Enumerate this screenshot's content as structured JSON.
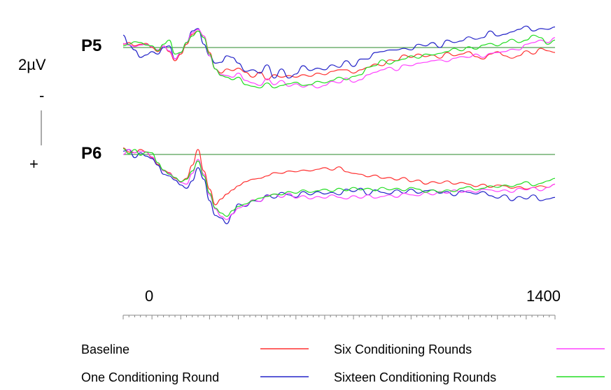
{
  "chart_data": {
    "type": "line",
    "description_axes": {
      "x_min": -100,
      "x_max": 1400,
      "x_tick_labels": [
        "0",
        "1400"
      ],
      "y_unit": "µV"
    },
    "scale_bar": {
      "value_label": "2µV",
      "negative_label": "-",
      "positive_label": "+"
    },
    "colors": {
      "baseline": "#ff3030",
      "one": "#2323c8",
      "six": "#ff40ff",
      "sixteen": "#22dd22",
      "reference": "#2a8a2a",
      "axis": "#888888"
    },
    "legend": [
      {
        "name": "Baseline",
        "color": "#ff3030"
      },
      {
        "name": "Six Conditioning Rounds",
        "color": "#ff40ff"
      },
      {
        "name": "One Conditioning Round",
        "color": "#2323c8"
      },
      {
        "name": "Sixteen Conditioning Rounds",
        "color": "#22dd22"
      }
    ],
    "channels": [
      {
        "label": "P5",
        "x": [
          -100,
          -80,
          -60,
          -40,
          -20,
          0,
          20,
          40,
          60,
          80,
          100,
          120,
          140,
          160,
          180,
          200,
          220,
          240,
          260,
          280,
          300,
          325,
          350,
          375,
          400,
          425,
          450,
          475,
          500,
          525,
          550,
          575,
          600,
          625,
          650,
          675,
          700,
          725,
          750,
          775,
          800,
          825,
          850,
          875,
          900,
          925,
          950,
          975,
          1000,
          1025,
          1050,
          1075,
          1100,
          1125,
          1150,
          1175,
          1200,
          1225,
          1250,
          1275,
          1300,
          1325,
          1350,
          1375,
          1400
        ],
        "series": [
          {
            "key": "baseline",
            "values": [
              0.4,
              0.6,
              0.2,
              0.4,
              0.5,
              0.0,
              -0.5,
              0.2,
              -0.5,
              -1.6,
              -0.8,
              0.4,
              1.6,
              2.0,
              1.4,
              -0.6,
              -2.6,
              -3.1,
              -2.6,
              -2.8,
              -2.5,
              -3.0,
              -3.6,
              -3.0,
              -3.9,
              -3.3,
              -3.6,
              -3.4,
              -3.6,
              -3.3,
              -3.5,
              -3.1,
              -3.3,
              -2.9,
              -2.7,
              -2.7,
              -3.1,
              -2.7,
              -2.4,
              -2.0,
              -2.2,
              -1.5,
              -1.6,
              -0.9,
              -1.2,
              -0.8,
              -1.1,
              -0.9,
              -1.3,
              -0.6,
              -1.0,
              -0.8,
              -0.5,
              -1.1,
              -1.4,
              -0.8,
              -0.5,
              -1.0,
              -1.3,
              -1.0,
              -0.4,
              -0.8,
              -0.1,
              -0.4,
              -0.6
            ]
          },
          {
            "key": "one",
            "values": [
              1.5,
              0.3,
              -0.3,
              -1.2,
              -0.9,
              -0.5,
              -0.8,
              0.0,
              0.2,
              -1.4,
              -0.6,
              0.6,
              2.0,
              2.3,
              0.4,
              -1.0,
              -1.9,
              -1.8,
              -1.0,
              -1.2,
              -1.9,
              -2.9,
              -2.7,
              -3.1,
              -2.1,
              -3.7,
              -2.6,
              -3.7,
              -3.2,
              -2.2,
              -2.8,
              -2.5,
              -2.7,
              -2.1,
              -2.4,
              -1.6,
              -2.3,
              -1.4,
              -1.4,
              -0.6,
              -0.5,
              -0.3,
              -0.3,
              -0.1,
              -0.3,
              0.4,
              0.2,
              0.6,
              0.0,
              0.9,
              0.6,
              0.8,
              1.3,
              1.0,
              1.2,
              2.0,
              1.4,
              1.6,
              1.9,
              2.2,
              2.6,
              2.0,
              2.3,
              2.2,
              2.5
            ]
          },
          {
            "key": "six",
            "values": [
              0.5,
              0.3,
              0.1,
              0.3,
              0.4,
              0.1,
              -0.3,
              0.2,
              -0.4,
              -1.4,
              -0.6,
              0.6,
              1.8,
              2.2,
              1.4,
              -1.0,
              -2.6,
              -3.3,
              -3.4,
              -3.6,
              -3.1,
              -4.0,
              -4.3,
              -4.6,
              -3.8,
              -4.5,
              -4.0,
              -4.7,
              -4.4,
              -4.8,
              -4.5,
              -4.9,
              -4.6,
              -4.1,
              -4.3,
              -3.7,
              -4.2,
              -3.9,
              -3.3,
              -3.0,
              -2.7,
              -2.4,
              -2.8,
              -2.1,
              -2.2,
              -1.9,
              -1.8,
              -1.6,
              -1.5,
              -1.7,
              -1.3,
              -1.1,
              -1.2,
              -0.8,
              -1.2,
              -0.7,
              -0.6,
              -0.5,
              -0.2,
              -0.3,
              0.4,
              0.6,
              0.9,
              0.6,
              1.2
            ]
          },
          {
            "key": "sixteen",
            "values": [
              0.2,
              0.4,
              0.7,
              0.6,
              0.3,
              0.2,
              -0.4,
              0.4,
              0.9,
              -0.8,
              -0.6,
              0.6,
              1.4,
              2.0,
              1.2,
              -0.8,
              -2.6,
              -3.4,
              -3.6,
              -3.9,
              -3.6,
              -4.5,
              -4.7,
              -4.9,
              -4.3,
              -4.9,
              -4.6,
              -4.4,
              -4.2,
              -4.6,
              -4.5,
              -4.1,
              -4.3,
              -4.0,
              -3.6,
              -3.9,
              -3.5,
              -3.3,
              -2.4,
              -2.2,
              -1.5,
              -2.0,
              -1.6,
              -1.4,
              -1.0,
              -1.3,
              -0.8,
              -0.9,
              -0.7,
              -0.5,
              -0.1,
              -0.4,
              0.1,
              -0.2,
              0.3,
              0.5,
              0.2,
              0.6,
              1.0,
              0.6,
              0.9,
              1.5,
              1.2,
              0.4,
              0.9
            ]
          }
        ]
      },
      {
        "label": "P6",
        "x": [
          -100,
          -80,
          -60,
          -40,
          -20,
          0,
          20,
          40,
          60,
          80,
          100,
          120,
          140,
          160,
          180,
          200,
          220,
          240,
          260,
          280,
          300,
          325,
          350,
          375,
          400,
          425,
          450,
          475,
          500,
          525,
          550,
          575,
          600,
          625,
          650,
          675,
          700,
          725,
          750,
          775,
          800,
          825,
          850,
          875,
          900,
          925,
          950,
          975,
          1000,
          1025,
          1050,
          1075,
          1100,
          1125,
          1150,
          1175,
          1200,
          1225,
          1250,
          1275,
          1300,
          1325,
          1350,
          1375,
          1400
        ],
        "series": [
          {
            "key": "baseline",
            "values": [
              0.8,
              0.3,
              0.2,
              0.6,
              0.3,
              -0.4,
              -1.2,
              -1.9,
              -2.2,
              -2.9,
              -3.3,
              -2.9,
              -1.3,
              0.6,
              -2.0,
              -4.2,
              -6.1,
              -5.4,
              -4.8,
              -4.3,
              -3.8,
              -3.3,
              -3.0,
              -2.9,
              -2.6,
              -2.2,
              -2.3,
              -2.0,
              -2.1,
              -1.9,
              -2.0,
              -1.8,
              -1.6,
              -1.9,
              -1.5,
              -2.1,
              -2.3,
              -2.4,
              -2.7,
              -2.5,
              -2.9,
              -2.8,
              -3.1,
              -2.8,
              -3.3,
              -3.1,
              -3.6,
              -3.3,
              -3.5,
              -3.2,
              -3.6,
              -3.4,
              -3.6,
              -3.9,
              -3.6,
              -4.0,
              -3.7,
              -3.8,
              -4.1,
              -3.9,
              -4.2,
              -4.0,
              -3.8,
              -4.0,
              -3.6
            ]
          },
          {
            "key": "one",
            "values": [
              0.4,
              0.6,
              -0.4,
              0.2,
              -0.2,
              -0.5,
              -1.3,
              -2.4,
              -2.6,
              -3.1,
              -3.7,
              -4.1,
              -3.2,
              -1.6,
              -3.0,
              -5.6,
              -7.4,
              -7.7,
              -8.4,
              -7.2,
              -6.0,
              -6.3,
              -5.6,
              -5.7,
              -4.9,
              -5.3,
              -4.6,
              -4.9,
              -5.2,
              -4.5,
              -4.9,
              -4.5,
              -4.8,
              -4.6,
              -4.9,
              -4.2,
              -4.5,
              -4.1,
              -4.9,
              -4.3,
              -4.6,
              -4.8,
              -4.3,
              -4.7,
              -4.2,
              -4.7,
              -4.4,
              -4.3,
              -4.7,
              -4.5,
              -5.0,
              -4.4,
              -4.6,
              -4.8,
              -4.5,
              -5.0,
              -5.3,
              -4.9,
              -5.6,
              -5.1,
              -5.4,
              -4.9,
              -5.6,
              -5.4,
              -5.2
            ]
          },
          {
            "key": "six",
            "values": [
              0.0,
              0.6,
              0.2,
              0.4,
              0.3,
              -0.3,
              -1.0,
              -2.0,
              -2.3,
              -2.8,
              -3.4,
              -3.6,
              -2.3,
              -0.6,
              -2.4,
              -4.9,
              -6.6,
              -7.5,
              -7.9,
              -7.2,
              -6.5,
              -6.2,
              -5.5,
              -5.7,
              -5.0,
              -4.8,
              -5.2,
              -4.7,
              -5.3,
              -5.0,
              -5.4,
              -5.1,
              -5.3,
              -4.9,
              -5.2,
              -5.4,
              -5.0,
              -5.3,
              -4.9,
              -5.3,
              -5.1,
              -4.9,
              -5.2,
              -4.7,
              -4.9,
              -5.0,
              -4.6,
              -4.9,
              -4.5,
              -4.7,
              -4.3,
              -4.6,
              -4.4,
              -4.6,
              -4.2,
              -4.3,
              -4.5,
              -4.3,
              -4.6,
              -4.1,
              -4.3,
              -4.0,
              -4.4,
              -4.0,
              -3.6
            ]
          },
          {
            "key": "sixteen",
            "values": [
              0.7,
              0.1,
              0.6,
              -0.1,
              0.3,
              0.2,
              -1.0,
              -1.9,
              -2.4,
              -2.8,
              -3.3,
              -3.0,
              -2.0,
              -0.8,
              -2.6,
              -4.7,
              -6.5,
              -7.1,
              -7.5,
              -6.8,
              -6.3,
              -6.0,
              -5.6,
              -5.3,
              -5.1,
              -4.8,
              -4.9,
              -4.5,
              -4.7,
              -4.3,
              -4.6,
              -4.4,
              -4.2,
              -4.5,
              -4.1,
              -4.4,
              -4.0,
              -4.3,
              -4.1,
              -4.4,
              -4.0,
              -4.3,
              -4.1,
              -4.4,
              -4.0,
              -4.2,
              -4.6,
              -4.3,
              -4.6,
              -4.3,
              -4.5,
              -4.1,
              -3.9,
              -4.3,
              -4.1,
              -3.8,
              -4.0,
              -3.7,
              -3.9,
              -3.6,
              -3.3,
              -3.8,
              -3.5,
              -3.2,
              -2.9
            ]
          }
        ]
      }
    ]
  }
}
